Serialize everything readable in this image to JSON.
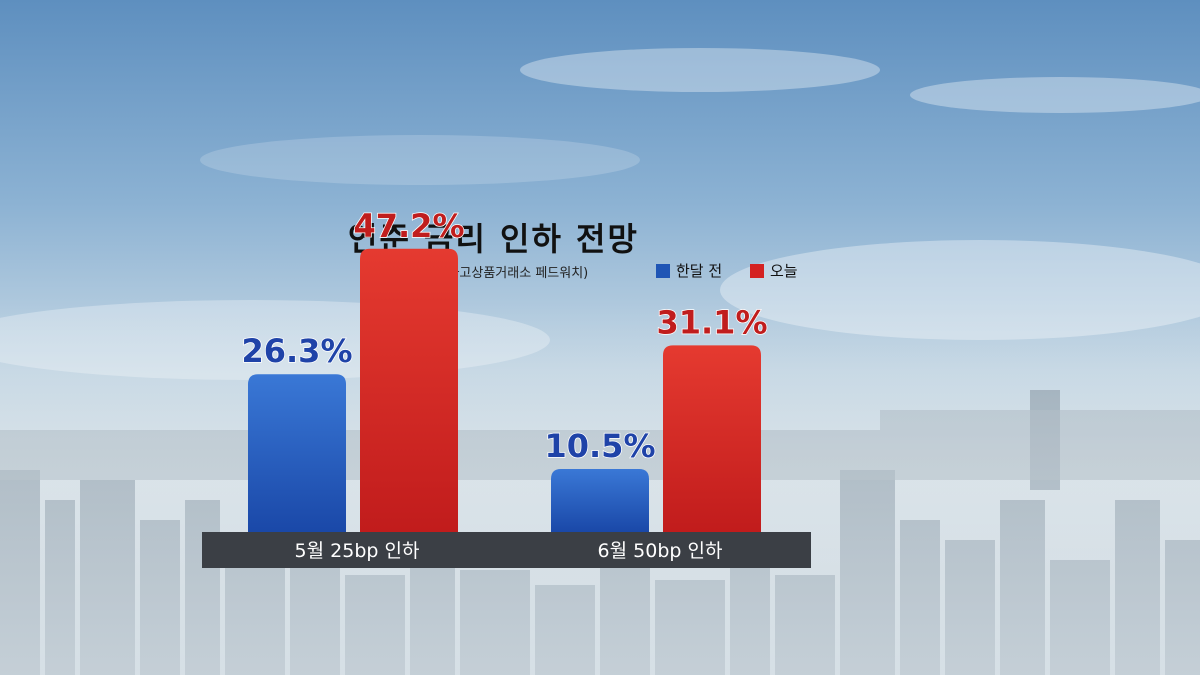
{
  "colors": {
    "before": "#1f55b5",
    "today": "#d42222",
    "before_label": "#1f43a8",
    "today_label": "#c01d1d",
    "category_bar": "#3b3f45"
  },
  "chart_data": {
    "type": "bar",
    "title": "연준 금리 인하 전망",
    "source": "(자료: 시카고상품거래소 페드워치)",
    "categories": [
      "5월 25bp 인하",
      "6월 50bp 인하"
    ],
    "series": [
      {
        "name": "한달 전",
        "values": [
          26.3,
          10.5
        ],
        "labels": [
          "26.3%",
          "10.5%"
        ]
      },
      {
        "name": "오늘",
        "values": [
          47.2,
          31.1
        ],
        "labels": [
          "47.2%",
          "31.1%"
        ]
      }
    ],
    "ylim": [
      0,
      100
    ],
    "grid": false,
    "legend": "top-right"
  }
}
